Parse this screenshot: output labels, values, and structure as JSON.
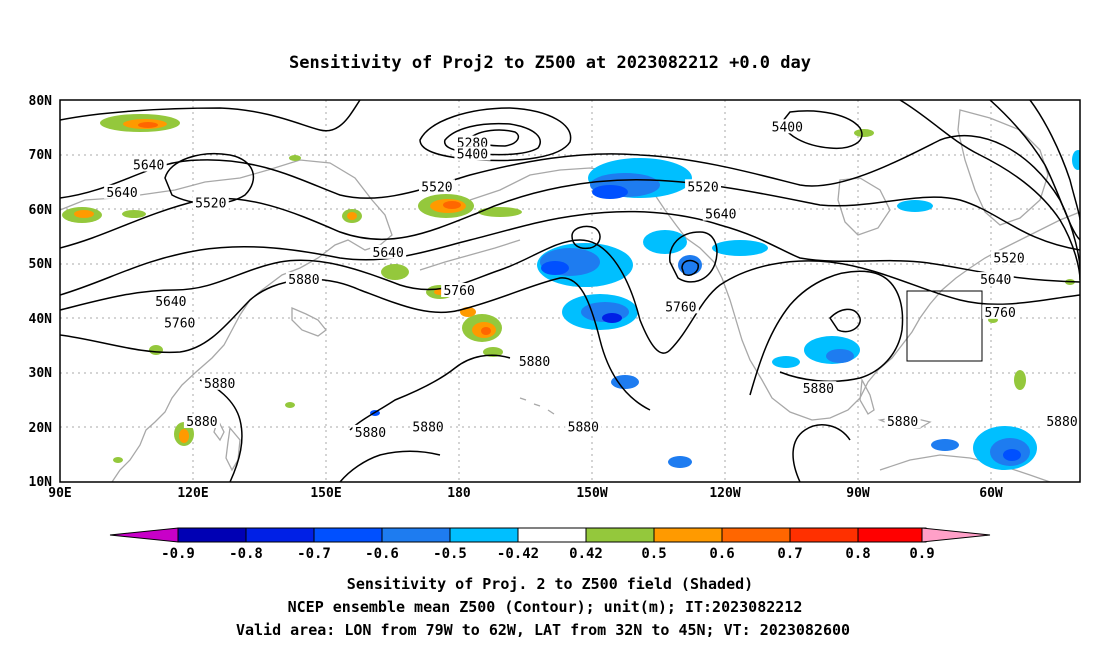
{
  "title": "Sensitivity of Proj2 to Z500 at 2023082212 +0.0 day",
  "map": {
    "lat_labels": [
      "80N",
      "70N",
      "60N",
      "50N",
      "40N",
      "30N",
      "20N",
      "10N"
    ],
    "lon_labels": [
      "90E",
      "120E",
      "150E",
      "180",
      "150W",
      "120W",
      "90W",
      "60W"
    ],
    "lon_range": [
      90,
      320
    ],
    "lat_range": [
      10,
      80
    ],
    "grid": true,
    "box": {
      "lon": [
        281,
        298
      ],
      "lat": [
        32,
        45
      ]
    }
  },
  "contour_labels": [
    {
      "text": "5640",
      "lon": 110,
      "lat": 68
    },
    {
      "text": "5640",
      "lon": 104,
      "lat": 63
    },
    {
      "text": "5520",
      "lon": 124,
      "lat": 61
    },
    {
      "text": "5280",
      "lon": 183,
      "lat": 72
    },
    {
      "text": "5400",
      "lon": 183,
      "lat": 70
    },
    {
      "text": "5520",
      "lon": 175,
      "lat": 64
    },
    {
      "text": "5640",
      "lon": 164,
      "lat": 52
    },
    {
      "text": "5640",
      "lon": 115,
      "lat": 43
    },
    {
      "text": "5880",
      "lon": 145,
      "lat": 47
    },
    {
      "text": "5760",
      "lon": 117,
      "lat": 39
    },
    {
      "text": "5760",
      "lon": 180,
      "lat": 45
    },
    {
      "text": "5880",
      "lon": 197,
      "lat": 32
    },
    {
      "text": "5880",
      "lon": 126,
      "lat": 28
    },
    {
      "text": "5880",
      "lon": 122,
      "lat": 21
    },
    {
      "text": "5880",
      "lon": 160,
      "lat": 19
    },
    {
      "text": "5880",
      "lon": 173,
      "lat": 20
    },
    {
      "text": "5880",
      "lon": 208,
      "lat": 20
    },
    {
      "text": "5400",
      "lon": 254,
      "lat": 75
    },
    {
      "text": "5520",
      "lon": 235,
      "lat": 64
    },
    {
      "text": "5640",
      "lon": 239,
      "lat": 59
    },
    {
      "text": "5760",
      "lon": 230,
      "lat": 42
    },
    {
      "text": "5880",
      "lon": 261,
      "lat": 27
    },
    {
      "text": "5880",
      "lon": 280,
      "lat": 21
    },
    {
      "text": "5880",
      "lon": 320,
      "lat": 21
    },
    {
      "text": "5520",
      "lon": 304,
      "lat": 51
    },
    {
      "text": "5640",
      "lon": 301,
      "lat": 47
    },
    {
      "text": "5760",
      "lon": 302,
      "lat": 41
    }
  ],
  "colorbar": {
    "labels": [
      "-0.9",
      "-0.8",
      "-0.7",
      "-0.6",
      "-0.5",
      "-0.42",
      "0.42",
      "0.5",
      "0.6",
      "0.7",
      "0.8",
      "0.9"
    ],
    "colors": [
      "#c800c8",
      "#0000b4",
      "#0020e6",
      "#0050ff",
      "#1e7cf0",
      "#00bfff",
      "#ffffff",
      "#94c83c",
      "#ff9a00",
      "#ff6600",
      "#ff3000",
      "#ff0000",
      "#ffa0c8"
    ]
  },
  "caption": {
    "line1": "Sensitivity of Proj. 2 to Z500 field (Shaded)",
    "line2": "NCEP ensemble mean Z500 (Contour); unit(m); IT:2023082212",
    "line3": "Valid area: LON from 79W to 62W, LAT from 32N to 45N; VT: 2023082600"
  }
}
